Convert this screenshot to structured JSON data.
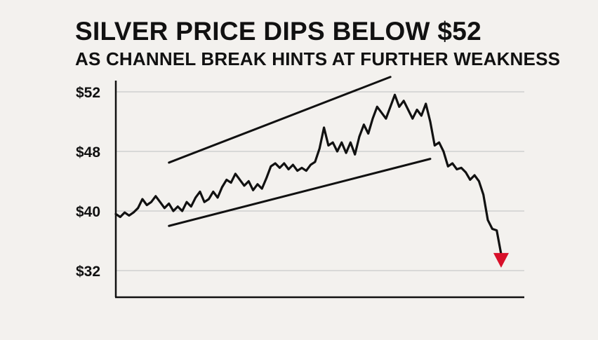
{
  "header": {
    "title": "SILVER PRICE DIPS BELOW $52",
    "subtitle": "AS CHANNEL BREAK HINTS AT FURTHER WEAKNESS"
  },
  "colors": {
    "background": "#f3f1ee",
    "line": "#111111",
    "grid": "#cfcfcf",
    "arrow": "#d8102a"
  },
  "icons": {
    "down_arrow": "red-down-arrow-icon"
  },
  "chart_data": {
    "type": "line",
    "title": "SILVER PRICE DIPS BELOW $52",
    "subtitle": "AS CHANNEL BREAK HINTS AT FURTHER WEAKNESS",
    "xlabel": "",
    "ylabel": "",
    "x_ticks": false,
    "grid": "horizontal",
    "y_ticks": [
      {
        "label": "$52",
        "value": 52
      },
      {
        "label": "$48",
        "value": 48
      },
      {
        "label": "$40",
        "value": 40
      },
      {
        "label": "$32",
        "value": 32
      }
    ],
    "x_range": [
      0,
      100
    ],
    "series": [
      {
        "values": [
          [
            0,
            39.6
          ],
          [
            1,
            39.2
          ],
          [
            2,
            39.8
          ],
          [
            3,
            39.4
          ],
          [
            4,
            39.8
          ],
          [
            5,
            40.4
          ],
          [
            6,
            41.6
          ],
          [
            7,
            40.8
          ],
          [
            8,
            41.2
          ],
          [
            9,
            42.0
          ],
          [
            10,
            41.2
          ],
          [
            11,
            40.4
          ],
          [
            12,
            41.0
          ],
          [
            13,
            40.0
          ],
          [
            14,
            40.6
          ],
          [
            15,
            40.0
          ],
          [
            16,
            41.2
          ],
          [
            17,
            40.6
          ],
          [
            18,
            41.8
          ],
          [
            19,
            42.6
          ],
          [
            20,
            41.2
          ],
          [
            21,
            41.6
          ],
          [
            22,
            42.6
          ],
          [
            23,
            41.8
          ],
          [
            24,
            43.2
          ],
          [
            25,
            44.2
          ],
          [
            26,
            43.8
          ],
          [
            27,
            45.0
          ],
          [
            28,
            44.2
          ],
          [
            29,
            43.4
          ],
          [
            30,
            44.0
          ],
          [
            31,
            42.8
          ],
          [
            32,
            43.6
          ],
          [
            33,
            43.0
          ],
          [
            34,
            44.4
          ],
          [
            35,
            46.0
          ],
          [
            36,
            46.4
          ],
          [
            37,
            45.8
          ],
          [
            38,
            46.4
          ],
          [
            39,
            45.6
          ],
          [
            40,
            46.2
          ],
          [
            41,
            45.4
          ],
          [
            42,
            45.8
          ],
          [
            43,
            45.4
          ],
          [
            44,
            46.2
          ],
          [
            45,
            46.6
          ],
          [
            46,
            48.2
          ],
          [
            47,
            49.6
          ],
          [
            48,
            48.4
          ],
          [
            49,
            48.6
          ],
          [
            50,
            48.0
          ],
          [
            51,
            48.6
          ],
          [
            52,
            47.8
          ],
          [
            53,
            48.6
          ],
          [
            54,
            47.6
          ],
          [
            55,
            49.0
          ],
          [
            56,
            49.8
          ],
          [
            57,
            49.2
          ],
          [
            58,
            50.2
          ],
          [
            59,
            51.0
          ],
          [
            60,
            50.6
          ],
          [
            61,
            50.2
          ],
          [
            62,
            51.0
          ],
          [
            63,
            51.8
          ],
          [
            64,
            51.0
          ],
          [
            65,
            51.4
          ],
          [
            66,
            50.8
          ],
          [
            67,
            50.2
          ],
          [
            68,
            50.8
          ],
          [
            69,
            50.4
          ],
          [
            70,
            51.2
          ],
          [
            71,
            50.0
          ],
          [
            72,
            48.4
          ],
          [
            73,
            48.6
          ],
          [
            74,
            48.0
          ],
          [
            75,
            46.0
          ],
          [
            76,
            46.4
          ],
          [
            77,
            45.6
          ],
          [
            78,
            45.8
          ],
          [
            79,
            45.2
          ],
          [
            80,
            44.2
          ],
          [
            81,
            44.8
          ],
          [
            82,
            44.0
          ],
          [
            83,
            42.2
          ],
          [
            84,
            38.8
          ],
          [
            85,
            37.6
          ],
          [
            86,
            37.4
          ],
          [
            87,
            34.2
          ]
        ]
      }
    ],
    "trendlines": [
      {
        "name": "channel-upper",
        "start": [
          12,
          46.5
        ],
        "end": [
          62,
          53.0
        ]
      },
      {
        "name": "channel-lower",
        "start": [
          12,
          38.0
        ],
        "end": [
          71,
          47.0
        ]
      }
    ],
    "annotations": [
      {
        "type": "arrow",
        "direction": "down",
        "at": [
          87,
          33.8
        ],
        "color": "#d8102a"
      }
    ]
  }
}
